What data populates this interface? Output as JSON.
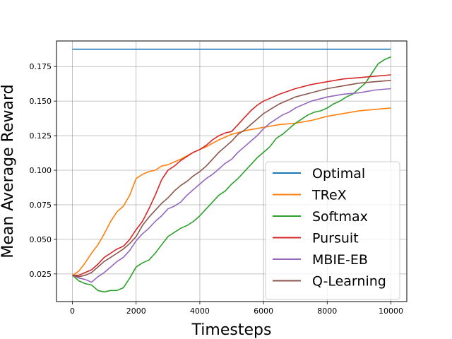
{
  "chart_data": {
    "type": "line",
    "title": "",
    "xlabel": "Timesteps",
    "ylabel": "Mean Average Reward",
    "xlim": [
      -500,
      10500
    ],
    "ylim": [
      0.005,
      0.1935
    ],
    "xticks": [
      0,
      2000,
      4000,
      6000,
      8000,
      10000
    ],
    "xtick_labels": [
      "0",
      "2000",
      "4000",
      "6000",
      "8000",
      "10000"
    ],
    "yticks": [
      0.025,
      0.05,
      0.075,
      0.1,
      0.125,
      0.15,
      0.175
    ],
    "ytick_labels": [
      "0.025",
      "0.050",
      "0.075",
      "0.100",
      "0.125",
      "0.150",
      "0.175"
    ],
    "grid": true,
    "legend_position": "lower-right",
    "series": [
      {
        "name": "Optimal",
        "color": "#1f77b4",
        "x": [
          0,
          10000
        ],
        "y": [
          0.1875,
          0.1875
        ]
      },
      {
        "name": "TReX",
        "color": "#ff7f0e",
        "x": [
          0,
          200,
          400,
          600,
          800,
          1000,
          1200,
          1400,
          1600,
          1800,
          2000,
          2200,
          2400,
          2600,
          2800,
          3000,
          3400,
          3800,
          4200,
          4600,
          5000,
          5500,
          6000,
          6500,
          7000,
          7500,
          8000,
          8500,
          9000,
          9500,
          10000
        ],
        "y": [
          0.024,
          0.027,
          0.033,
          0.04,
          0.046,
          0.054,
          0.063,
          0.07,
          0.074,
          0.082,
          0.094,
          0.097,
          0.099,
          0.1,
          0.103,
          0.104,
          0.108,
          0.113,
          0.117,
          0.122,
          0.126,
          0.129,
          0.131,
          0.133,
          0.134,
          0.136,
          0.139,
          0.141,
          0.143,
          0.144,
          0.145
        ]
      },
      {
        "name": "Softmax",
        "color": "#2ca02c",
        "x": [
          0,
          200,
          400,
          600,
          800,
          1000,
          1200,
          1400,
          1600,
          1800,
          2000,
          2200,
          2400,
          2600,
          2800,
          3000,
          3200,
          3400,
          3600,
          3800,
          4000,
          4200,
          4400,
          4600,
          4800,
          5000,
          5200,
          5400,
          5600,
          5800,
          6000,
          6200,
          6400,
          6600,
          6800,
          7000,
          7200,
          7400,
          7600,
          7800,
          8000,
          8200,
          8400,
          8600,
          8800,
          9000,
          9200,
          9400,
          9600,
          9800,
          10000
        ],
        "y": [
          0.024,
          0.02,
          0.018,
          0.017,
          0.013,
          0.012,
          0.013,
          0.013,
          0.015,
          0.022,
          0.03,
          0.033,
          0.035,
          0.04,
          0.046,
          0.052,
          0.055,
          0.058,
          0.06,
          0.063,
          0.067,
          0.072,
          0.077,
          0.082,
          0.085,
          0.09,
          0.094,
          0.099,
          0.104,
          0.109,
          0.113,
          0.117,
          0.123,
          0.126,
          0.13,
          0.134,
          0.137,
          0.14,
          0.142,
          0.143,
          0.145,
          0.148,
          0.15,
          0.153,
          0.155,
          0.159,
          0.163,
          0.17,
          0.177,
          0.18,
          0.182
        ]
      },
      {
        "name": "Pursuit",
        "color": "#d62728",
        "x": [
          0,
          200,
          400,
          600,
          800,
          1000,
          1200,
          1400,
          1600,
          1800,
          2000,
          2200,
          2400,
          2600,
          2800,
          3000,
          3200,
          3400,
          3600,
          3800,
          4000,
          4200,
          4400,
          4600,
          4800,
          5000,
          5200,
          5400,
          5600,
          5800,
          6000,
          6500,
          7000,
          7500,
          8000,
          8500,
          9000,
          9500,
          10000
        ],
        "y": [
          0.024,
          0.024,
          0.026,
          0.028,
          0.032,
          0.037,
          0.04,
          0.043,
          0.045,
          0.05,
          0.057,
          0.063,
          0.072,
          0.082,
          0.093,
          0.1,
          0.103,
          0.107,
          0.11,
          0.113,
          0.115,
          0.118,
          0.122,
          0.125,
          0.127,
          0.128,
          0.133,
          0.138,
          0.143,
          0.147,
          0.15,
          0.155,
          0.159,
          0.162,
          0.164,
          0.166,
          0.167,
          0.168,
          0.169
        ]
      },
      {
        "name": "MBIE-EB",
        "color": "#9467bd",
        "x": [
          0,
          200,
          400,
          600,
          800,
          1000,
          1200,
          1400,
          1600,
          1800,
          2000,
          2200,
          2400,
          2600,
          2800,
          3000,
          3200,
          3400,
          3600,
          3800,
          4000,
          4200,
          4400,
          4600,
          4800,
          5000,
          5200,
          5400,
          5600,
          5800,
          6000,
          6200,
          6400,
          6600,
          6800,
          7000,
          7500,
          8000,
          8500,
          9000,
          9500,
          10000
        ],
        "y": [
          0.024,
          0.022,
          0.021,
          0.019,
          0.023,
          0.026,
          0.03,
          0.034,
          0.037,
          0.042,
          0.049,
          0.054,
          0.058,
          0.063,
          0.067,
          0.072,
          0.074,
          0.077,
          0.082,
          0.086,
          0.09,
          0.094,
          0.097,
          0.101,
          0.105,
          0.108,
          0.113,
          0.117,
          0.121,
          0.125,
          0.13,
          0.134,
          0.137,
          0.14,
          0.142,
          0.145,
          0.15,
          0.153,
          0.155,
          0.156,
          0.158,
          0.159
        ]
      },
      {
        "name": "Q-Learning",
        "color": "#8c564b",
        "x": [
          0,
          200,
          400,
          600,
          800,
          1000,
          1200,
          1400,
          1600,
          1800,
          2000,
          2200,
          2400,
          2600,
          2800,
          3000,
          3200,
          3400,
          3600,
          3800,
          4000,
          4200,
          4400,
          4600,
          4800,
          5000,
          5200,
          5400,
          5600,
          5800,
          6000,
          6500,
          7000,
          7500,
          8000,
          8500,
          9000,
          9500,
          10000
        ],
        "y": [
          0.024,
          0.023,
          0.024,
          0.026,
          0.03,
          0.034,
          0.037,
          0.04,
          0.043,
          0.047,
          0.052,
          0.06,
          0.066,
          0.071,
          0.076,
          0.08,
          0.085,
          0.089,
          0.092,
          0.096,
          0.099,
          0.103,
          0.108,
          0.113,
          0.117,
          0.121,
          0.126,
          0.129,
          0.133,
          0.137,
          0.141,
          0.148,
          0.153,
          0.156,
          0.159,
          0.161,
          0.163,
          0.164,
          0.165
        ]
      }
    ]
  }
}
